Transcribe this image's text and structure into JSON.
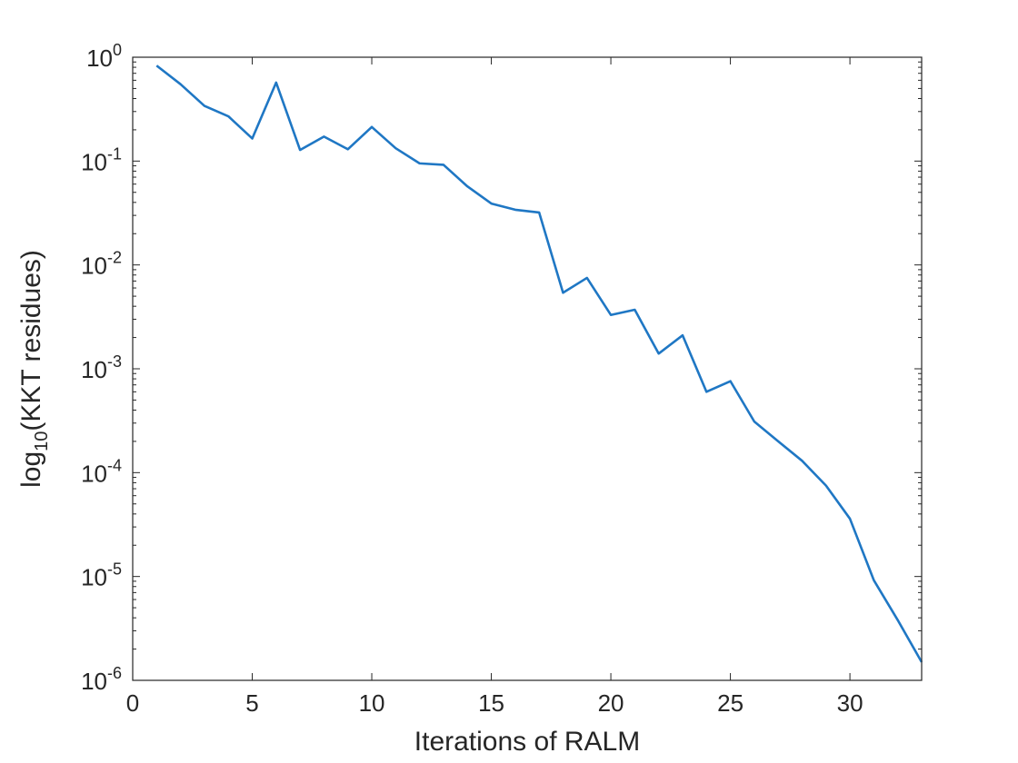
{
  "chart_data": {
    "type": "line",
    "xlabel": "Iterations of RALM",
    "ylabel": "log10(KKT residues)",
    "ylabel_parts": {
      "prefix": "log",
      "subscript": "10",
      "suffix": "(KKT residues)"
    },
    "xlim": [
      0,
      33
    ],
    "ylim": [
      1e-06,
      1
    ],
    "yscale": "log",
    "grid": false,
    "x_ticks": [
      "0",
      "5",
      "10",
      "15",
      "20",
      "25",
      "30"
    ],
    "y_ticks": [
      {
        "base": "10",
        "exp": "0",
        "value": 1
      },
      {
        "base": "10",
        "exp": "-1",
        "value": 0.1
      },
      {
        "base": "10",
        "exp": "-2",
        "value": 0.01
      },
      {
        "base": "10",
        "exp": "-3",
        "value": 0.001
      },
      {
        "base": "10",
        "exp": "-4",
        "value": 0.0001
      },
      {
        "base": "10",
        "exp": "-5",
        "value": 1e-05
      },
      {
        "base": "10",
        "exp": "-6",
        "value": 1e-06
      }
    ],
    "series": [
      {
        "color": "#1f77c4",
        "x": [
          1,
          2,
          3,
          4,
          5,
          6,
          7,
          8,
          9,
          10,
          11,
          12,
          13,
          14,
          15,
          16,
          17,
          18,
          19,
          20,
          21,
          22,
          23,
          24,
          25,
          26,
          27,
          28,
          29,
          30,
          31,
          32,
          33
        ],
        "y": [
          0.83,
          0.55,
          0.34,
          0.27,
          0.165,
          0.57,
          0.128,
          0.172,
          0.13,
          0.213,
          0.133,
          0.095,
          0.092,
          0.057,
          0.039,
          0.034,
          0.032,
          0.0054,
          0.0075,
          0.0033,
          0.0037,
          0.0014,
          0.0021,
          0.0006,
          0.00076,
          0.00031,
          0.0002,
          0.00013,
          7.5e-05,
          3.6e-05,
          9.2e-06,
          3.8e-06,
          1.5e-06
        ]
      }
    ]
  }
}
